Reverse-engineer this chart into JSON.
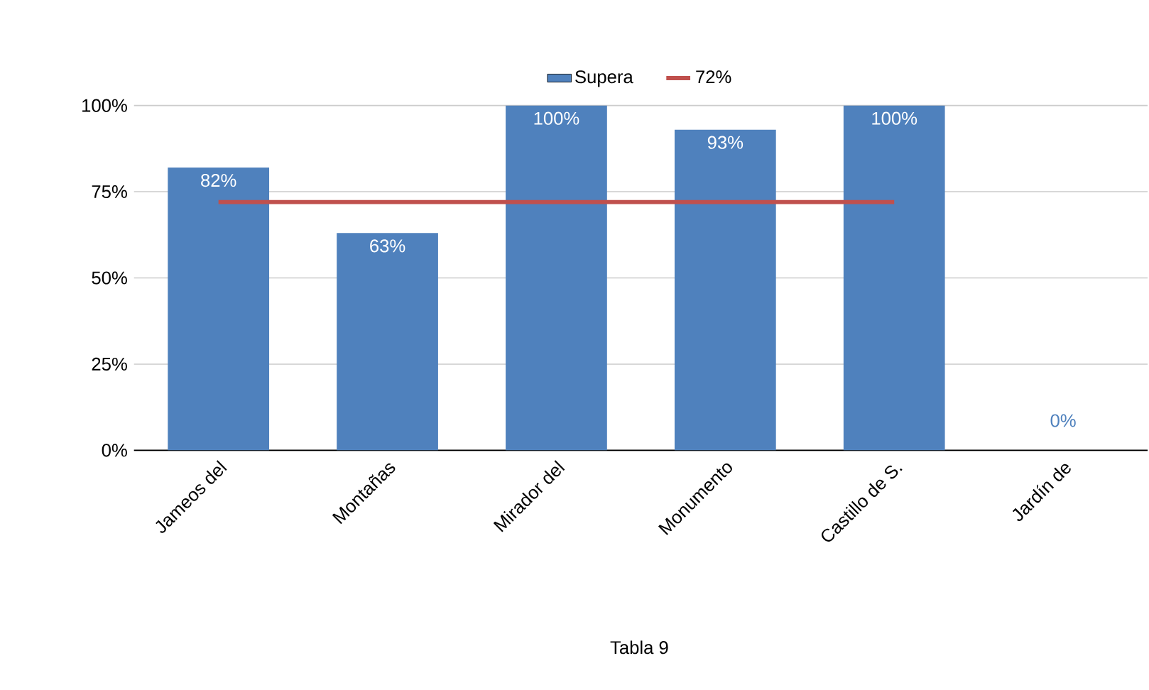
{
  "chart_data": {
    "type": "bar",
    "categories": [
      "Jameos del",
      "Montañas",
      "Mirador del",
      "Monumento",
      "Castillo de S.",
      "Jardín de"
    ],
    "series": [
      {
        "name": "Supera",
        "color": "#4f81bd",
        "values": [
          82,
          63,
          100,
          93,
          100,
          0
        ],
        "value_labels": [
          "82%",
          "63%",
          "100%",
          "93%",
          "100%",
          "0%"
        ]
      },
      {
        "name": "72%",
        "type": "line",
        "color": "#c0504d",
        "values": [
          72,
          72,
          72,
          72,
          72,
          null
        ]
      }
    ],
    "ylim": [
      0,
      100
    ],
    "yticks": [
      {
        "value": 0,
        "label": "0%"
      },
      {
        "value": 25,
        "label": "25%"
      },
      {
        "value": 50,
        "label": "50%"
      },
      {
        "value": 75,
        "label": "75%"
      },
      {
        "value": 100,
        "label": "100%"
      }
    ],
    "grid": "y",
    "legend": "top",
    "annotations": [
      "Tabla 9"
    ]
  }
}
